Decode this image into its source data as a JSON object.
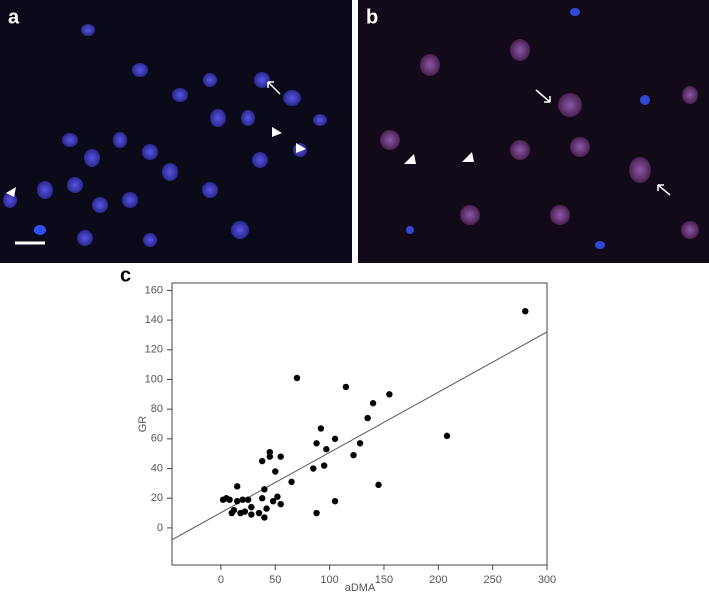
{
  "panels": [
    "a",
    "b",
    "c"
  ],
  "chart_data": {
    "type": "scatter",
    "xlabel": "aDMA",
    "ylabel": "GR",
    "xlim": [
      -45,
      300
    ],
    "ylim": [
      -25,
      165
    ],
    "xticks": [
      0,
      50,
      100,
      150,
      200,
      250,
      300
    ],
    "yticks": [
      0,
      20,
      40,
      60,
      80,
      100,
      120,
      140,
      160
    ],
    "color": "#000000",
    "line_color": "#555555",
    "x": [
      280,
      208,
      145,
      155,
      140,
      135,
      128,
      122,
      115,
      105,
      105,
      97,
      95,
      92,
      88,
      85,
      88,
      70,
      65,
      55,
      52,
      50,
      55,
      48,
      45,
      42,
      40,
      38,
      38,
      40,
      35,
      28,
      28,
      25,
      20,
      18,
      15,
      15,
      12,
      10,
      8,
      5,
      2,
      22,
      45
    ],
    "values": [
      146,
      62,
      29,
      90,
      84,
      74,
      57,
      49,
      95,
      60,
      18,
      53,
      42,
      67,
      57,
      40,
      10,
      101,
      31,
      48,
      21,
      38,
      16,
      18,
      51,
      13,
      26,
      45,
      20,
      7,
      10,
      9,
      14,
      19,
      19,
      10,
      28,
      18,
      12,
      10,
      19,
      20,
      19,
      11,
      48
    ],
    "fit": {
      "x": [
        -45,
        300
      ],
      "values": [
        -8,
        132
      ]
    }
  }
}
